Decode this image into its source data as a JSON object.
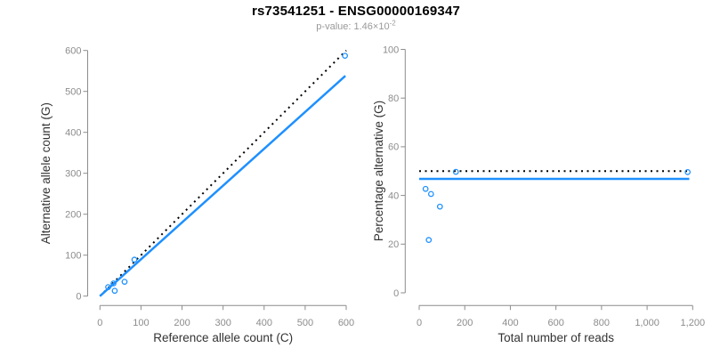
{
  "header": {
    "title": "rs73541251 - ENSG00000169347",
    "pvalue_text": "p-value: 1.46×10",
    "pvalue_exponent": "-2"
  },
  "colors": {
    "accent_blue": "#1E90FF",
    "dotted_line_black": "#000000",
    "axis_gray": "#8C8C8C",
    "tick_label_gray": "#8C8C8C",
    "axis_title_color": "#333333",
    "title_color": "#000000",
    "subtitle_color": "#999999"
  },
  "chart_data": [
    {
      "type": "scatter",
      "name": "allele-counts-scatter",
      "title": "rs73541251 - ENSG00000169347",
      "subtitle": "p-value: 1.46×10^-2",
      "xlabel": "Reference allele count (C)",
      "ylabel": "Alternative allele count (G)",
      "xlim": [
        0,
        600
      ],
      "ylim": [
        0,
        600
      ],
      "grid": false,
      "legend_position": "none",
      "xticks": [
        [
          0,
          "0"
        ],
        [
          100,
          "100"
        ],
        [
          200,
          "200"
        ],
        [
          300,
          "300"
        ],
        [
          400,
          "400"
        ],
        [
          500,
          "500"
        ],
        [
          600,
          "600"
        ]
      ],
      "yticks": [
        [
          0,
          "0"
        ],
        [
          100,
          "100"
        ],
        [
          200,
          "200"
        ],
        [
          300,
          "300"
        ],
        [
          400,
          "400"
        ],
        [
          500,
          "500"
        ],
        [
          600,
          "600"
        ]
      ],
      "points": [
        [
          20,
          22
        ],
        [
          33,
          31
        ],
        [
          36,
          13
        ],
        [
          60,
          35
        ],
        [
          84,
          89
        ],
        [
          597,
          587
        ]
      ],
      "lines": [
        {
          "name": "identity-line",
          "style": "dotted",
          "color": "#000000",
          "x1": 0,
          "y1": 0,
          "x2": 600,
          "y2": 600
        },
        {
          "name": "fit-line",
          "style": "solid",
          "color": "#1E90FF",
          "x1": 0,
          "y1": 0,
          "x2": 598,
          "y2": 538
        }
      ]
    },
    {
      "type": "scatter",
      "name": "percentage-vs-reads-scatter",
      "xlabel": "Total number of reads",
      "ylabel": "Percentage alternative (G)",
      "xlim": [
        0,
        1200
      ],
      "ylim": [
        0,
        100
      ],
      "grid": false,
      "legend_position": "none",
      "xticks": [
        [
          0,
          "0"
        ],
        [
          200,
          "200"
        ],
        [
          400,
          "400"
        ],
        [
          600,
          "600"
        ],
        [
          800,
          "800"
        ],
        [
          1000,
          "1,000"
        ],
        [
          1200,
          "1,200"
        ]
      ],
      "yticks": [
        [
          0,
          "0"
        ],
        [
          20,
          "20"
        ],
        [
          40,
          "40"
        ],
        [
          60,
          "60"
        ],
        [
          80,
          "80"
        ],
        [
          100,
          "100"
        ]
      ],
      "points": [
        [
          28,
          42.7
        ],
        [
          42,
          21.7
        ],
        [
          52,
          40.6
        ],
        [
          91,
          35.4
        ],
        [
          161,
          49.7
        ],
        [
          1178,
          49.6
        ]
      ],
      "lines": [
        {
          "name": "expected-50pct-line",
          "style": "dotted",
          "color": "#000000",
          "x1": 0,
          "y1": 50,
          "x2": 1185,
          "y2": 50
        },
        {
          "name": "observed-pct-line",
          "style": "solid",
          "color": "#1E90FF",
          "x1": 0,
          "y1": 46.8,
          "x2": 1185,
          "y2": 46.8
        }
      ]
    }
  ]
}
